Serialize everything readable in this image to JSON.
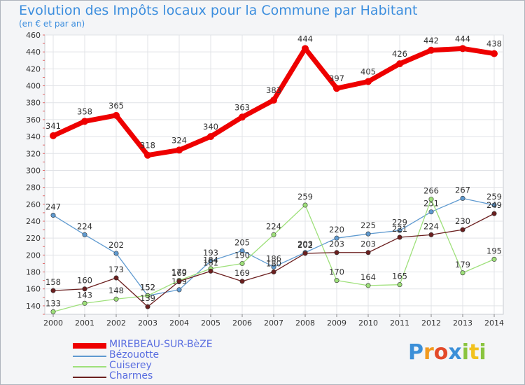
{
  "chart_data": {
    "type": "line",
    "title": "Evolution des Impôts locaux pour la Commune par Habitant",
    "subtitle": "(en € et par an)",
    "xlabel": "",
    "ylabel": "",
    "x": [
      "2000",
      "2001",
      "2002",
      "2003",
      "2004",
      "2005",
      "2006",
      "2007",
      "2008",
      "2009",
      "2010",
      "2011",
      "2012",
      "2013",
      "2014"
    ],
    "ylim": [
      130,
      460
    ],
    "yticks": [
      140,
      160,
      180,
      200,
      220,
      240,
      260,
      280,
      300,
      320,
      340,
      360,
      380,
      400,
      420,
      440,
      460
    ],
    "grid": true,
    "series": [
      {
        "name": "MIREBEAU-SUR-BèZE",
        "color": "#ee0000",
        "values": [
          341,
          358,
          365,
          318,
          324,
          340,
          363,
          383,
          444,
          397,
          405,
          426,
          442,
          444,
          438
        ]
      },
      {
        "name": "Bézouotte",
        "color": "#5f9ad0",
        "values": [
          247,
          224,
          202,
          152,
          159,
          193,
          205,
          186,
          203,
          220,
          225,
          229,
          251,
          267,
          259
        ]
      },
      {
        "name": "Cuiserey",
        "color": "#9ee07a",
        "values": [
          133,
          143,
          148,
          152,
          170,
          184,
          190,
          224,
          259,
          170,
          164,
          165,
          266,
          179,
          195
        ]
      },
      {
        "name": "Charmes",
        "color": "#6b1f1f",
        "values": [
          158,
          160,
          173,
          139,
          169,
          181,
          169,
          180,
          202,
          203,
          203,
          221,
          224,
          230,
          249
        ]
      }
    ]
  },
  "logo": {
    "letters": [
      "P",
      "r",
      "o",
      "x",
      "i",
      "t",
      "i"
    ],
    "colors": [
      "#3b8fd8",
      "#f29a1e",
      "#e34a2a",
      "#3b8fd8",
      "#8ac43f",
      "#f2c21e",
      "#8ac43f"
    ]
  }
}
